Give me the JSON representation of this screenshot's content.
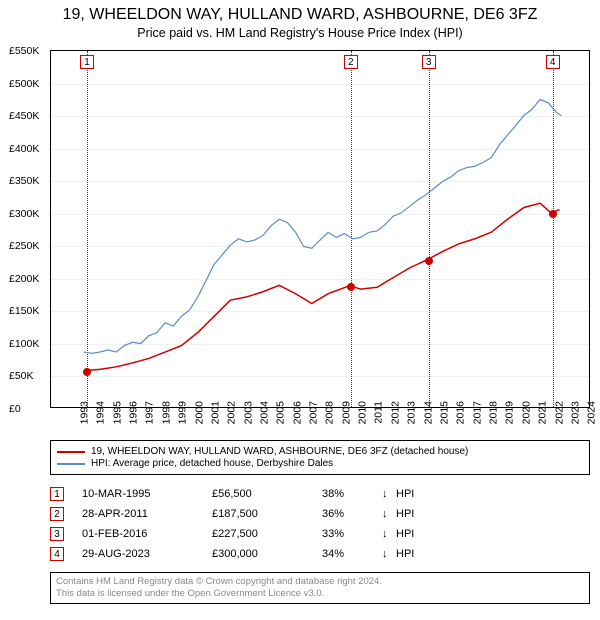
{
  "title": {
    "line1": "19, WHEELDON WAY, HULLAND WARD, ASHBOURNE, DE6 3FZ",
    "line2": "Price paid vs. HM Land Registry's House Price Index (HPI)"
  },
  "chart": {
    "type": "line",
    "background_color": "#ffffff",
    "grid_color": "#f0f0f0",
    "border_color": "#000000",
    "x": {
      "min": 1993,
      "max": 2026,
      "step": 1
    },
    "y": {
      "min": 0,
      "max": 550000,
      "step": 50000,
      "labels": [
        "£0",
        "£50K",
        "£100K",
        "£150K",
        "£200K",
        "£250K",
        "£300K",
        "£350K",
        "£400K",
        "£450K",
        "£500K",
        "£550K"
      ]
    },
    "label_fontsize": 10.5,
    "series": [
      {
        "id": "price_paid",
        "color": "#d00000",
        "width": 1.5,
        "points": [
          [
            1995.2,
            56500
          ],
          [
            1996,
            58000
          ],
          [
            1997,
            62000
          ],
          [
            1998,
            68000
          ],
          [
            1999,
            75000
          ],
          [
            2000,
            85000
          ],
          [
            2001,
            95000
          ],
          [
            2002,
            115000
          ],
          [
            2003,
            140000
          ],
          [
            2004,
            165000
          ],
          [
            2005,
            170000
          ],
          [
            2006,
            178000
          ],
          [
            2007,
            188000
          ],
          [
            2008,
            175000
          ],
          [
            2009,
            160000
          ],
          [
            2010,
            175000
          ],
          [
            2011.32,
            187500
          ],
          [
            2012,
            182000
          ],
          [
            2013,
            185000
          ],
          [
            2014,
            200000
          ],
          [
            2015,
            215000
          ],
          [
            2016.08,
            227500
          ],
          [
            2017,
            240000
          ],
          [
            2018,
            252000
          ],
          [
            2019,
            260000
          ],
          [
            2020,
            270000
          ],
          [
            2021,
            290000
          ],
          [
            2022,
            308000
          ],
          [
            2023,
            315000
          ],
          [
            2023.66,
            300000
          ],
          [
            2024.2,
            305000
          ]
        ]
      },
      {
        "id": "hpi",
        "color": "#5b8bc9",
        "width": 1.2,
        "points": [
          [
            1995,
            85000
          ],
          [
            1995.5,
            83000
          ],
          [
            1996,
            85000
          ],
          [
            1996.5,
            88000
          ],
          [
            1997,
            85000
          ],
          [
            1997.5,
            95000
          ],
          [
            1998,
            100000
          ],
          [
            1998.5,
            98000
          ],
          [
            1999,
            110000
          ],
          [
            1999.5,
            115000
          ],
          [
            2000,
            130000
          ],
          [
            2000.5,
            125000
          ],
          [
            2001,
            140000
          ],
          [
            2001.5,
            150000
          ],
          [
            2002,
            170000
          ],
          [
            2002.5,
            195000
          ],
          [
            2003,
            220000
          ],
          [
            2003.5,
            235000
          ],
          [
            2004,
            250000
          ],
          [
            2004.5,
            260000
          ],
          [
            2005,
            255000
          ],
          [
            2005.5,
            258000
          ],
          [
            2006,
            265000
          ],
          [
            2006.5,
            280000
          ],
          [
            2007,
            290000
          ],
          [
            2007.5,
            285000
          ],
          [
            2008,
            270000
          ],
          [
            2008.5,
            248000
          ],
          [
            2009,
            245000
          ],
          [
            2009.5,
            258000
          ],
          [
            2010,
            270000
          ],
          [
            2010.5,
            262000
          ],
          [
            2011,
            268000
          ],
          [
            2011.5,
            260000
          ],
          [
            2012,
            262000
          ],
          [
            2012.5,
            270000
          ],
          [
            2013,
            272000
          ],
          [
            2013.5,
            282000
          ],
          [
            2014,
            295000
          ],
          [
            2014.5,
            300000
          ],
          [
            2015,
            310000
          ],
          [
            2015.5,
            320000
          ],
          [
            2016,
            328000
          ],
          [
            2016.5,
            338000
          ],
          [
            2017,
            348000
          ],
          [
            2017.5,
            355000
          ],
          [
            2018,
            365000
          ],
          [
            2018.5,
            370000
          ],
          [
            2019,
            372000
          ],
          [
            2019.5,
            378000
          ],
          [
            2020,
            385000
          ],
          [
            2020.5,
            405000
          ],
          [
            2021,
            420000
          ],
          [
            2021.5,
            435000
          ],
          [
            2022,
            450000
          ],
          [
            2022.5,
            460000
          ],
          [
            2023,
            475000
          ],
          [
            2023.5,
            470000
          ],
          [
            2024,
            455000
          ],
          [
            2024.3,
            450000
          ]
        ]
      }
    ],
    "markers": [
      {
        "n": "1",
        "year": 1995.2,
        "color": "#d00000"
      },
      {
        "n": "2",
        "year": 2011.32,
        "color": "#d00000"
      },
      {
        "n": "3",
        "year": 2016.08,
        "color": "#d00000"
      },
      {
        "n": "4",
        "year": 2023.66,
        "color": "#d00000"
      }
    ],
    "dots": [
      {
        "year": 1995.2,
        "value": 56500
      },
      {
        "year": 2011.32,
        "value": 187500
      },
      {
        "year": 2016.08,
        "value": 227500
      },
      {
        "year": 2023.66,
        "value": 300000
      }
    ]
  },
  "legend": {
    "items": [
      {
        "color": "#d00000",
        "label": "19, WHEELDON WAY, HULLAND WARD, ASHBOURNE, DE6 3FZ (detached house)"
      },
      {
        "color": "#5b8bc9",
        "label": "HPI: Average price, detached house, Derbyshire Dales"
      }
    ]
  },
  "transactions": [
    {
      "n": "1",
      "date": "10-MAR-1995",
      "price": "£56,500",
      "pct": "38%",
      "arrow": "↓",
      "tag": "HPI"
    },
    {
      "n": "2",
      "date": "28-APR-2011",
      "price": "£187,500",
      "pct": "36%",
      "arrow": "↓",
      "tag": "HPI"
    },
    {
      "n": "3",
      "date": "01-FEB-2016",
      "price": "£227,500",
      "pct": "33%",
      "arrow": "↓",
      "tag": "HPI"
    },
    {
      "n": "4",
      "date": "29-AUG-2023",
      "price": "£300,000",
      "pct": "34%",
      "arrow": "↓",
      "tag": "HPI"
    }
  ],
  "attribution": {
    "line1": "Contains HM Land Registry data © Crown copyright and database right 2024.",
    "line2": "This data is licensed under the Open Government Licence v3.0."
  },
  "colors": {
    "marker_border": "#d00000",
    "attrib_text": "#888888"
  }
}
